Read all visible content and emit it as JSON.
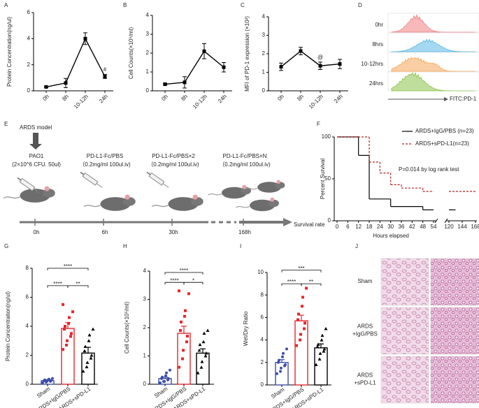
{
  "chart_data": [
    {
      "type": "line",
      "label": "A",
      "ylabel": "Protein Concentration(ng/ul)",
      "categories": [
        "0h",
        "8h",
        "10-12h",
        "24h"
      ],
      "values": [
        0.3,
        0.6,
        4.0,
        1.1
      ],
      "errors": [
        0.05,
        0.35,
        0.45,
        0.15
      ],
      "color": "#000000",
      "ylim": [
        0,
        6
      ],
      "yticks": [
        0,
        2,
        4,
        6
      ],
      "annotations": [
        {
          "text": "#",
          "x": "24h",
          "y": 1.6
        }
      ]
    },
    {
      "type": "line",
      "label": "B",
      "ylabel": "Cell Counts(×10⁵/ml)",
      "categories": [
        "0h",
        "8h",
        "10-12h",
        "24h"
      ],
      "values": [
        0.35,
        0.45,
        2.1,
        1.25
      ],
      "errors": [
        0.05,
        0.3,
        0.4,
        0.25
      ],
      "color": "#000000",
      "ylim": [
        0,
        4
      ],
      "yticks": [
        0,
        1,
        2,
        3,
        4
      ]
    },
    {
      "type": "line",
      "label": "C",
      "ylabel": "MFI of PD-1 expression (×10²)",
      "categories": [
        "0h",
        "8h",
        "10-12h",
        "24h"
      ],
      "values": [
        1.3,
        2.15,
        1.35,
        1.45
      ],
      "errors": [
        0.2,
        0.2,
        0.2,
        0.25
      ],
      "color": "#000000",
      "ylim": [
        0,
        4
      ],
      "yticks": [
        0,
        1,
        2,
        3,
        4
      ],
      "annotations": [
        {
          "text": "@",
          "x": "10-12h",
          "y": 1.8
        }
      ]
    },
    {
      "type": "step",
      "label": "F",
      "xlabel": "Hours elapsed",
      "ylabel": "Percent Survival",
      "xlim": [
        0,
        168
      ],
      "xbreak": [
        54,
        120
      ],
      "xticks": [
        0,
        6,
        12,
        18,
        24,
        30,
        36,
        42,
        48,
        54,
        120,
        144,
        168
      ],
      "ylim": [
        0,
        100
      ],
      "yticks": [
        0,
        50,
        100
      ],
      "legend": "upper right",
      "annotations": [
        {
          "text": "P=0.014 by log rank test"
        }
      ],
      "series": [
        {
          "name": "ARDS+IgG/PBS (n=23)",
          "color": "#000000",
          "dash": "solid",
          "x": [
            0,
            12,
            18,
            30,
            48,
            54,
            120,
            132
          ],
          "values": [
            100,
            78,
            26,
            17,
            13,
            13,
            13,
            13
          ]
        },
        {
          "name": "ARDS+sPD-L1(n=23)",
          "color": "#b22222",
          "dash": "dashed",
          "x": [
            0,
            18,
            24,
            30,
            36,
            48,
            54,
            120,
            168
          ],
          "values": [
            100,
            70,
            57,
            43,
            39,
            35,
            35,
            35,
            35
          ]
        }
      ]
    },
    {
      "type": "bar",
      "label": "G",
      "ylabel": "Protein Concentration(ng/ul)",
      "categories": [
        "Sham",
        "ARDS+IgG/PBS",
        "ARDS+sPD-L1"
      ],
      "values": [
        0.25,
        3.85,
        2.15
      ],
      "errors": [
        0.05,
        0.4,
        0.4
      ],
      "colors": [
        "#3d4fa8",
        "#e8262a",
        "#000000"
      ],
      "markers": [
        "circle",
        "square",
        "triangle"
      ],
      "ylim": [
        0,
        8
      ],
      "yticks": [
        0,
        2,
        4,
        6,
        8
      ],
      "points": [
        [
          0.1,
          0.15,
          0.2,
          0.2,
          0.25,
          0.25,
          0.3,
          0.3,
          0.35,
          0.4
        ],
        [
          2.4,
          2.7,
          3.0,
          3.3,
          3.5,
          3.8,
          4.0,
          4.2,
          4.6,
          5.0,
          5.5
        ],
        [
          0.9,
          1.2,
          1.5,
          1.8,
          2.0,
          2.3,
          2.6,
          3.0,
          3.4,
          3.8
        ]
      ],
      "brackets": [
        {
          "from": "Sham",
          "to": "ARDS+sPD-L1",
          "y": 8,
          "text": "****"
        },
        {
          "from": "Sham",
          "to": "ARDS+IgG/PBS",
          "y": 6.8,
          "text": "****"
        },
        {
          "from": "ARDS+IgG/PBS",
          "to": "ARDS+sPD-L1",
          "y": 6.8,
          "text": "**"
        }
      ]
    },
    {
      "type": "bar",
      "label": "H",
      "ylabel": "Cell Counts(×10⁵/ml)",
      "categories": [
        "Sham",
        "ARDS+IgG/PBS",
        "ARDS+sPD-L1"
      ],
      "values": [
        0.2,
        1.8,
        1.1
      ],
      "errors": [
        0.05,
        0.25,
        0.15
      ],
      "colors": [
        "#3d4fa8",
        "#e8262a",
        "#000000"
      ],
      "markers": [
        "circle",
        "square",
        "triangle"
      ],
      "ylim": [
        0,
        4
      ],
      "yticks": [
        0,
        1,
        2,
        3,
        4
      ],
      "points": [
        [
          0.05,
          0.1,
          0.1,
          0.15,
          0.2,
          0.2,
          0.25,
          0.3,
          0.4,
          0.5
        ],
        [
          0.6,
          0.9,
          1.2,
          1.5,
          1.7,
          1.9,
          2.2,
          2.4,
          2.6,
          3.2,
          3.3
        ],
        [
          0.4,
          0.6,
          0.8,
          1.0,
          1.1,
          1.2,
          1.4,
          1.5,
          1.8,
          1.9
        ]
      ],
      "brackets": [
        {
          "from": "Sham",
          "to": "ARDS+sPD-L1",
          "y": 3.95,
          "text": "****"
        },
        {
          "from": "Sham",
          "to": "ARDS+IgG/PBS",
          "y": 3.6,
          "text": "****"
        },
        {
          "from": "ARDS+IgG/PBS",
          "to": "ARDS+sPD-L1",
          "y": 3.6,
          "text": "*"
        }
      ]
    },
    {
      "type": "bar",
      "label": "I",
      "ylabel": "Wet/Dry Ratio",
      "categories": [
        "Sham",
        "ARDS+IgG/PBS",
        "ARDS+sPD-L1"
      ],
      "values": [
        2.0,
        5.7,
        3.3
      ],
      "errors": [
        0.25,
        0.5,
        0.35
      ],
      "colors": [
        "#3d4fa8",
        "#e8262a",
        "#000000"
      ],
      "markers": [
        "circle",
        "square",
        "triangle"
      ],
      "ylim": [
        0,
        10
      ],
      "yticks": [
        0,
        2,
        4,
        6,
        8,
        10
      ],
      "points": [
        [
          1.0,
          1.2,
          1.5,
          1.7,
          1.8,
          2.0,
          2.2,
          2.5,
          2.8,
          3.2
        ],
        [
          3.5,
          4.0,
          4.5,
          5.0,
          5.5,
          5.8,
          6.3,
          7.0,
          7.8,
          8.6
        ],
        [
          1.8,
          2.3,
          2.8,
          3.0,
          3.2,
          3.4,
          3.6,
          4.0,
          4.4,
          5.0
        ]
      ],
      "brackets": [
        {
          "from": "Sham",
          "to": "ARDS+sPD-L1",
          "y": 10.2,
          "text": "***"
        },
        {
          "from": "Sham",
          "to": "ARDS+IgG/PBS",
          "y": 9,
          "text": "****"
        },
        {
          "from": "ARDS+IgG/PBS",
          "to": "ARDS+sPD-L1",
          "y": 9,
          "text": "**"
        }
      ]
    }
  ],
  "panel_d": {
    "label": "D",
    "rows": [
      "0hr",
      "8hrs",
      "10-12hrs",
      "24hrs"
    ],
    "colors": [
      "#f08080",
      "#5bb8e8",
      "#f5a55a",
      "#8bc34a"
    ],
    "xlabel": "FITC:PD-1"
  },
  "panel_e": {
    "label": "E",
    "model": "ARDS model",
    "endpoint": "Survival rate",
    "steps": [
      {
        "title": "PAO1",
        "dose": "(2×10^6 CFU. 50ul)",
        "time": "0h"
      },
      {
        "title": "PD-L1-Fc/PBS",
        "dose": "（0.2mg/ml 100ul.iv)",
        "time": "6h"
      },
      {
        "title": "PD-L1-Fc/PBS×2",
        "dose": "（0.2mg/ml 100ul.iv)",
        "time": "30h"
      },
      {
        "title": "PD-L1-Fc/PBS×N",
        "dose": "（0.2mg/ml 100ul.iv)",
        "time": "168h"
      }
    ]
  },
  "panel_j": {
    "label": "J",
    "rows": [
      [
        "Sham"
      ],
      [
        "ARDS",
        "+IgG/PBS"
      ],
      [
        "ARDS",
        "+sPD-L1"
      ]
    ]
  }
}
